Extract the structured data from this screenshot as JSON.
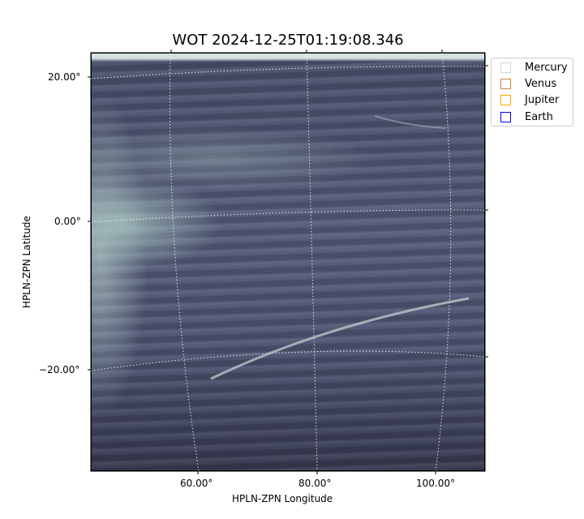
{
  "chart_data": {
    "type": "heatmap",
    "title": "WOT 2024-12-25T01:19:08.346",
    "xlabel": "HPLN-ZPN Longitude",
    "ylabel": "HPLN-ZPN Latitude",
    "xticks": [
      "60.00°",
      "80.00°",
      "100.00°"
    ],
    "yticks": [
      "20.00°",
      "0.00°",
      "−20.00°"
    ],
    "grid": true,
    "colormap": "bone",
    "legend_placement": "outside-top-right",
    "legend": [
      {
        "name": "Mercury",
        "color": "#d3d3d3"
      },
      {
        "name": "Venus",
        "color": "#cd853f"
      },
      {
        "name": "Jupiter",
        "color": "#ffa500"
      },
      {
        "name": "Earth",
        "color": "#0000ff"
      }
    ]
  }
}
